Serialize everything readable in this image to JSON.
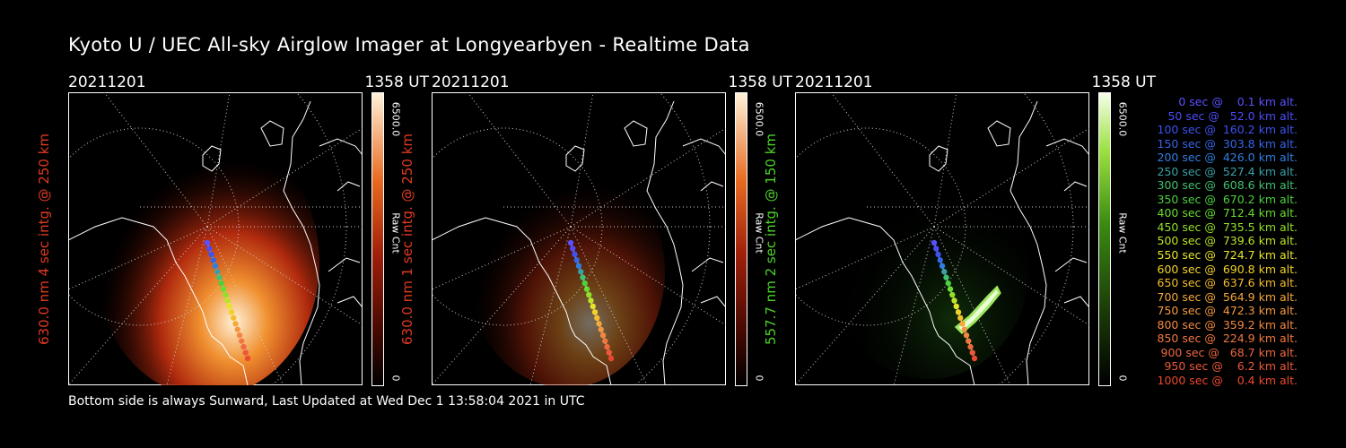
{
  "title": "Kyoto U / UEC All-sky Airglow Imager at Longyearbyen - Realtime Data",
  "footer": "Bottom side is always Sunward, Last Updated at Wed Dec  1 13:58:04 2021 in UTC",
  "panels": [
    {
      "date": "20211201",
      "time": "1358 UT",
      "side_label": "630.0 nm 4 sec intg. @ 250 km",
      "label_color": "#e03a22",
      "cbar_max": "6500.0",
      "cbar_label": "Raw Cnt",
      "cbar_min": "0",
      "colormap": "red",
      "intensity": 1.0
    },
    {
      "date": "20211201",
      "time": "1358 UT",
      "side_label": "630.0 nm 1 sec intg. @ 250 km",
      "label_color": "#e03a22",
      "cbar_max": "6500.0",
      "cbar_label": "Raw Cnt",
      "cbar_min": "0",
      "colormap": "red",
      "intensity": 0.45
    },
    {
      "date": "20211201",
      "time": "1358 UT",
      "side_label": "557.7 nm 2 sec intg. @ 150 km",
      "label_color": "#4cd12a",
      "cbar_max": "6500.0",
      "cbar_label": "Raw Cnt",
      "cbar_min": "0",
      "colormap": "green",
      "intensity": 1.0
    }
  ],
  "legend": [
    {
      "text": "   0 sec @    0.1 km alt.",
      "color": "#5a50ff"
    },
    {
      "text": "  50 sec @   52.0 km alt.",
      "color": "#4b4cf5"
    },
    {
      "text": " 100 sec @  160.2 km alt.",
      "color": "#3d52f0"
    },
    {
      "text": " 150 sec @  303.8 km alt.",
      "color": "#3565e8"
    },
    {
      "text": " 200 sec @  426.0 km alt.",
      "color": "#2f7fe0"
    },
    {
      "text": " 250 sec @  527.4 km alt.",
      "color": "#3aa0a8"
    },
    {
      "text": " 300 sec @  608.6 km alt.",
      "color": "#40c070"
    },
    {
      "text": " 350 sec @  670.2 km alt.",
      "color": "#4cd040"
    },
    {
      "text": " 400 sec @  712.4 km alt.",
      "color": "#68dc30"
    },
    {
      "text": " 450 sec @  735.5 km alt.",
      "color": "#90e028"
    },
    {
      "text": " 500 sec @  739.6 km alt.",
      "color": "#bce428"
    },
    {
      "text": " 550 sec @  724.7 km alt.",
      "color": "#e6e428"
    },
    {
      "text": " 600 sec @  690.8 km alt.",
      "color": "#f2d228"
    },
    {
      "text": " 650 sec @  637.6 km alt.",
      "color": "#f4bc30"
    },
    {
      "text": " 700 sec @  564.9 km alt.",
      "color": "#f4a838"
    },
    {
      "text": " 750 sec @  472.3 km alt.",
      "color": "#f49840"
    },
    {
      "text": " 800 sec @  359.2 km alt.",
      "color": "#f28840"
    },
    {
      "text": " 850 sec @  224.9 km alt.",
      "color": "#f07840"
    },
    {
      "text": " 900 sec @   68.7 km alt.",
      "color": "#ee6840"
    },
    {
      "text": " 950 sec @    6.2 km alt.",
      "color": "#ec5838"
    },
    {
      "text": "1000 sec @    0.4 km alt.",
      "color": "#ea4830"
    }
  ]
}
